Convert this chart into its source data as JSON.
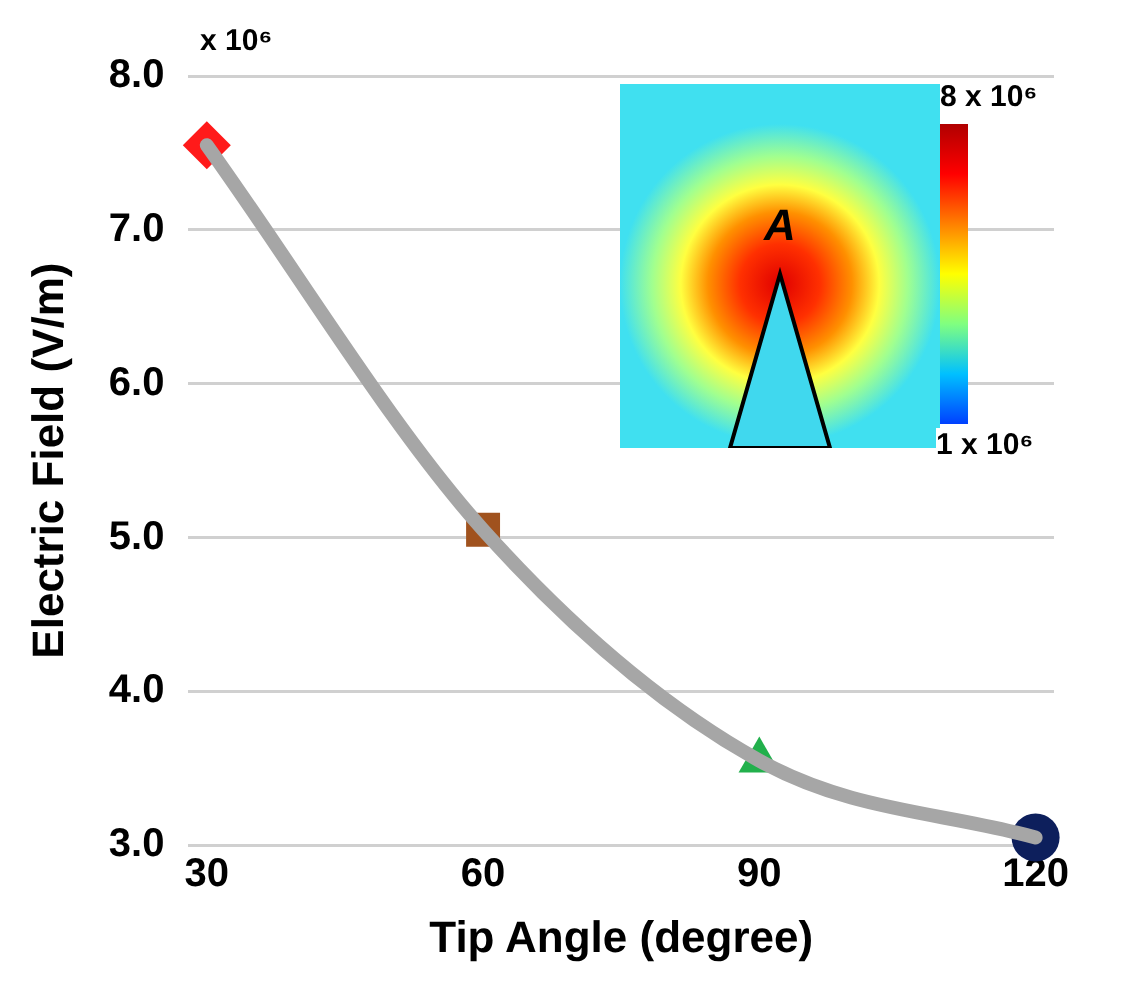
{
  "chart_data": {
    "type": "line",
    "xlabel": "Tip Angle (degree)",
    "ylabel": "Electric Field (V/m)",
    "x": [
      30,
      60,
      90,
      120
    ],
    "series": [
      {
        "color": "#a6a6a6",
        "values": [
          7.55,
          5.05,
          3.55,
          3.05
        ],
        "marker": "none"
      },
      {
        "type": "scatter",
        "x": [
          30
        ],
        "values": [
          7.55
        ],
        "color": "#ff1a1a",
        "marker": "diamond"
      },
      {
        "type": "scatter",
        "x": [
          60
        ],
        "values": [
          5.05
        ],
        "color": "#a0521e",
        "marker": "square"
      },
      {
        "type": "scatter",
        "x": [
          90
        ],
        "values": [
          3.55
        ],
        "color": "#22b04c",
        "marker": "triangle"
      },
      {
        "type": "scatter",
        "x": [
          120
        ],
        "values": [
          3.05
        ],
        "color": "#0d1f5c",
        "marker": "circle"
      }
    ],
    "xlim": [
      28,
      122
    ],
    "xticks": [
      30,
      60,
      90,
      120
    ],
    "ylim": [
      3,
      8
    ],
    "yticks": [
      {
        "value": 3,
        "label": "3.0"
      },
      {
        "value": 4,
        "label": "4.0"
      },
      {
        "value": 5,
        "label": "5.0"
      },
      {
        "value": 6,
        "label": "6.0"
      },
      {
        "value": 7,
        "label": "7.0"
      },
      {
        "value": 8,
        "label": "8.0"
      }
    ],
    "grid": "y",
    "legend": false,
    "annotations": [
      "x 10⁶",
      "A",
      "8 x 10⁶",
      "1 x 10⁶"
    ]
  }
}
